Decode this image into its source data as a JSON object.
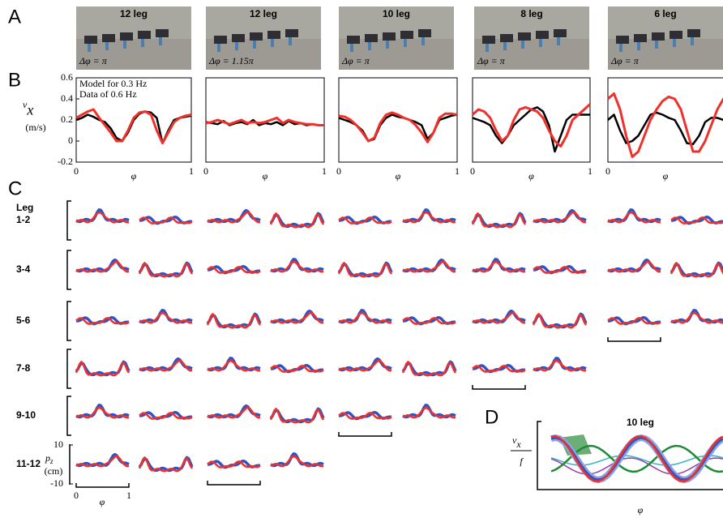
{
  "panel_labels": [
    "A",
    "B",
    "C",
    "D"
  ],
  "photos": [
    {
      "title": "12 leg",
      "phase": "Δφ = π"
    },
    {
      "title": "12 leg",
      "phase": "Δφ = 1.15π"
    },
    {
      "title": "10 leg",
      "phase": "Δφ = π"
    },
    {
      "title": "8 leg",
      "phase": "Δφ = π"
    },
    {
      "title": "6 leg",
      "phase": "Δφ = π"
    }
  ],
  "chart_data": [
    {
      "type": "line",
      "ylabel": "v",
      "ylabel_sub": "x",
      "yunit": "(m/s)",
      "xlabel": "φ",
      "x": [
        0,
        0.05,
        0.1,
        0.15,
        0.2,
        0.25,
        0.3,
        0.35,
        0.4,
        0.45,
        0.5,
        0.55,
        0.6,
        0.65,
        0.7,
        0.75,
        0.8,
        0.85,
        0.9,
        0.95,
        1
      ],
      "xlim": [
        0,
        1
      ],
      "xticks": [
        0,
        1
      ],
      "ylim": [
        -0.2,
        0.6
      ],
      "yticks": [
        -0.2,
        0,
        0.2,
        0.4,
        0.6
      ],
      "series": [
        {
          "name": "Model for 0.3 Hz",
          "color": "#000000",
          "values": [
            0.2,
            0.22,
            0.25,
            0.23,
            0.2,
            0.18,
            0.12,
            0.03,
            0,
            0.08,
            0.2,
            0.26,
            0.28,
            0.27,
            0.22,
            -0.02,
            0.1,
            0.2,
            0.22,
            0.23,
            0.24
          ]
        },
        {
          "name": "Data of 0.6 Hz",
          "color": "#f0302a",
          "values": [
            0.22,
            0.25,
            0.28,
            0.3,
            0.22,
            0.15,
            0.08,
            0,
            0,
            0.1,
            0.22,
            0.27,
            0.28,
            0.25,
            0.1,
            -0.02,
            0.08,
            0.18,
            0.22,
            0.24,
            0.25
          ]
        }
      ]
    },
    {
      "type": "line",
      "xlabel": "φ",
      "x": [
        0,
        0.05,
        0.1,
        0.15,
        0.2,
        0.25,
        0.3,
        0.35,
        0.4,
        0.45,
        0.5,
        0.55,
        0.6,
        0.65,
        0.7,
        0.75,
        0.8,
        0.85,
        0.9,
        0.95,
        1
      ],
      "xlim": [
        0,
        1
      ],
      "xticks": [
        0,
        1
      ],
      "ylim": [
        -0.2,
        0.6
      ],
      "series": [
        {
          "color": "#000000",
          "values": [
            0.18,
            0.17,
            0.16,
            0.19,
            0.15,
            0.17,
            0.18,
            0.16,
            0.2,
            0.15,
            0.17,
            0.16,
            0.18,
            0.15,
            0.19,
            0.16,
            0.17,
            0.15,
            0.16,
            0.15,
            0.15
          ]
        },
        {
          "color": "#f0302a",
          "values": [
            0.17,
            0.18,
            0.2,
            0.18,
            0.16,
            0.18,
            0.2,
            0.17,
            0.18,
            0.17,
            0.18,
            0.2,
            0.22,
            0.17,
            0.2,
            0.18,
            0.17,
            0.16,
            0.16,
            0.15,
            0.15
          ]
        }
      ]
    },
    {
      "type": "line",
      "xlabel": "φ",
      "x": [
        0,
        0.05,
        0.1,
        0.15,
        0.2,
        0.25,
        0.3,
        0.35,
        0.4,
        0.45,
        0.5,
        0.55,
        0.6,
        0.65,
        0.7,
        0.75,
        0.8,
        0.85,
        0.9,
        0.95,
        1
      ],
      "xlim": [
        0,
        1
      ],
      "xticks": [
        0,
        1
      ],
      "ylim": [
        -0.2,
        0.6
      ],
      "series": [
        {
          "color": "#000000",
          "values": [
            0.22,
            0.2,
            0.18,
            0.15,
            0.1,
            0,
            0.02,
            0.15,
            0.22,
            0.25,
            0.23,
            0.22,
            0.2,
            0.18,
            0.15,
            0.02,
            0.08,
            0.2,
            0.22,
            0.24,
            0.25
          ]
        },
        {
          "color": "#f0302a",
          "values": [
            0.24,
            0.23,
            0.2,
            0.15,
            0.08,
            0,
            0.03,
            0.17,
            0.25,
            0.27,
            0.25,
            0.22,
            0.2,
            0.15,
            0.08,
            -0.01,
            0.08,
            0.22,
            0.26,
            0.26,
            0.25
          ]
        }
      ]
    },
    {
      "type": "line",
      "xlabel": "φ",
      "x": [
        0,
        0.05,
        0.1,
        0.15,
        0.2,
        0.25,
        0.3,
        0.35,
        0.4,
        0.45,
        0.5,
        0.55,
        0.6,
        0.65,
        0.7,
        0.75,
        0.8,
        0.85,
        0.9,
        0.95,
        1
      ],
      "xlim": [
        0,
        1
      ],
      "xticks": [
        0,
        1
      ],
      "ylim": [
        -0.2,
        0.6
      ],
      "series": [
        {
          "color": "#000000",
          "values": [
            0.22,
            0.2,
            0.18,
            0.15,
            0.05,
            -0.02,
            0.05,
            0.15,
            0.2,
            0.25,
            0.3,
            0.32,
            0.28,
            0.15,
            -0.1,
            0.05,
            0.2,
            0.25,
            0.25,
            0.25,
            0.25
          ]
        },
        {
          "color": "#f0302a",
          "values": [
            0.25,
            0.3,
            0.28,
            0.22,
            0.1,
            0,
            0.05,
            0.2,
            0.3,
            0.32,
            0.3,
            0.28,
            0.22,
            0.1,
            0,
            -0.05,
            0.05,
            0.2,
            0.25,
            0.3,
            0.35
          ]
        }
      ]
    },
    {
      "type": "line",
      "xlabel": "φ",
      "x": [
        0,
        0.05,
        0.1,
        0.15,
        0.2,
        0.25,
        0.3,
        0.35,
        0.4,
        0.45,
        0.5,
        0.55,
        0.6,
        0.65,
        0.7,
        0.75,
        0.8,
        0.85,
        0.9,
        0.95,
        1
      ],
      "xlim": [
        0,
        1
      ],
      "xticks": [
        0
      ],
      "ylim": [
        -0.2,
        0.6
      ],
      "series": [
        {
          "color": "#000000",
          "values": [
            0.2,
            0.25,
            0.1,
            -0.02,
            0,
            0.05,
            0.15,
            0.25,
            0.27,
            0.25,
            0.22,
            0.2,
            0.1,
            -0.02,
            -0.03,
            0.05,
            0.18,
            0.22,
            0.22,
            0.2,
            0.2
          ]
        },
        {
          "color": "#f0302a",
          "values": [
            0.4,
            0.45,
            0.3,
            0.05,
            -0.15,
            -0.1,
            0.05,
            0.2,
            0.3,
            0.38,
            0.42,
            0.4,
            0.3,
            0.1,
            -0.1,
            -0.1,
            0,
            0.15,
            0.3,
            0.4,
            0.45
          ]
        }
      ]
    }
  ],
  "panel_c": {
    "header": "Leg",
    "rows": [
      "1-2",
      "3-4",
      "5-6",
      "7-8",
      "9-10",
      "11-12"
    ],
    "yticks": [
      10,
      -10
    ],
    "ylabel": "p",
    "ylabel_sub": "z",
    "yunit": "(cm)",
    "xticks": [
      0,
      1
    ],
    "xlabel": "φ"
  },
  "panel_d": {
    "title": "10 leg",
    "ylabel": "v",
    "ylabel_sub": "x",
    "ylabel_den": "f",
    "xlabel": "φ"
  }
}
